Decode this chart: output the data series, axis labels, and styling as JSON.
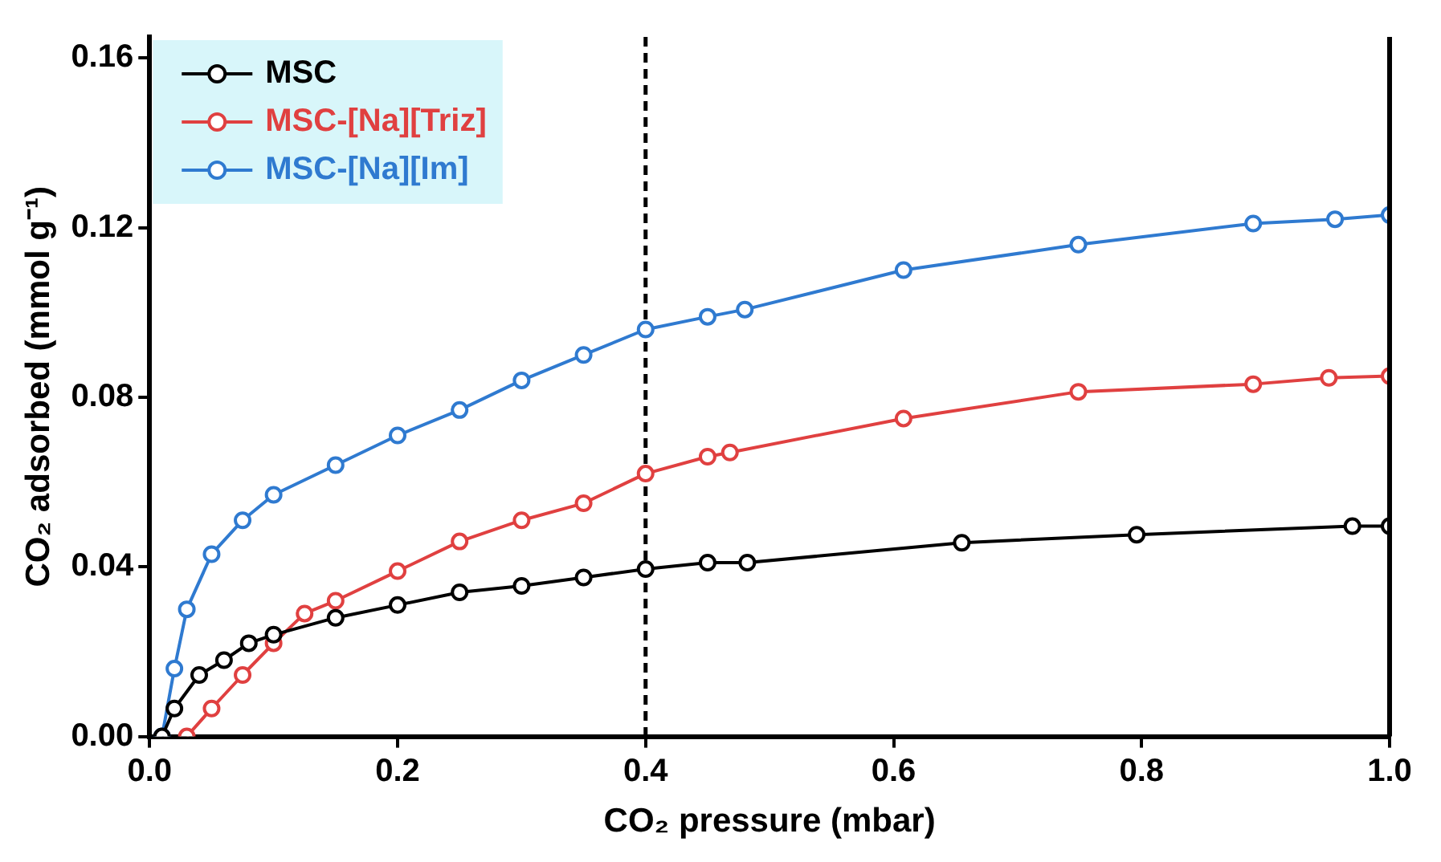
{
  "chart_data": {
    "type": "line",
    "xlabel": "CO₂ pressure (mbar)",
    "ylabel": "CO₂ adsorbed (mmol g⁻¹)",
    "xlim": [
      0,
      1
    ],
    "xticks": [
      {
        "value": 0,
        "label": "0.0"
      },
      {
        "value": 0.2,
        "label": "0.2"
      },
      {
        "value": 0.4,
        "label": "0.4"
      },
      {
        "value": 0.6,
        "label": "0.6"
      },
      {
        "value": 0.8,
        "label": "0.8"
      },
      {
        "value": 1,
        "label": "1.0"
      }
    ],
    "ylim": [
      0,
      0.165
    ],
    "yticks": [
      {
        "value": 0,
        "label": "0.00"
      },
      {
        "value": 0.04,
        "label": "0.04"
      },
      {
        "value": 0.08,
        "label": "0.08"
      },
      {
        "value": 0.12,
        "label": "0.12"
      },
      {
        "value": 0.16,
        "label": "0.16"
      }
    ],
    "grid": false,
    "legend": "top left",
    "marker": "circle",
    "line_style": "solid",
    "ref_lines": [
      {
        "axis": "x",
        "value": 0.4,
        "line_style": "dashed",
        "color": "#000000"
      }
    ],
    "series": [
      {
        "name": "MSC",
        "color": "#000000",
        "x": [
          0.01,
          0.02,
          0.04,
          0.06,
          0.08,
          0.1,
          0.15,
          0.2,
          0.25,
          0.3,
          0.35,
          0.4,
          0.45,
          0.482,
          0.655,
          0.796,
          0.97,
          1.0
        ],
        "values": [
          0,
          0.0066,
          0.0145,
          0.018,
          0.022,
          0.024,
          0.028,
          0.031,
          0.034,
          0.0355,
          0.0375,
          0.0395,
          0.041,
          0.041,
          0.0457,
          0.0476,
          0.0496,
          0.0496
        ]
      },
      {
        "name": "MSC-[Na][Triz]",
        "color": "#e04040",
        "x": [
          0.03,
          0.05,
          0.075,
          0.1,
          0.125,
          0.15,
          0.2,
          0.25,
          0.3,
          0.35,
          0.4,
          0.45,
          0.468,
          0.608,
          0.749,
          0.89,
          0.951,
          1.0
        ],
        "values": [
          0,
          0.0066,
          0.0145,
          0.022,
          0.029,
          0.032,
          0.039,
          0.046,
          0.051,
          0.055,
          0.062,
          0.066,
          0.067,
          0.075,
          0.0813,
          0.0831,
          0.0846,
          0.085
        ]
      },
      {
        "name": "MSC-[Na][Im]",
        "color": "#2f7ad0",
        "x": [
          0.01,
          0.02,
          0.03,
          0.05,
          0.075,
          0.1,
          0.15,
          0.2,
          0.25,
          0.3,
          0.35,
          0.4,
          0.45,
          0.48,
          0.608,
          0.749,
          0.89,
          0.956,
          1.0
        ],
        "values": [
          0,
          0.016,
          0.03,
          0.043,
          0.051,
          0.057,
          0.064,
          0.071,
          0.077,
          0.084,
          0.09,
          0.096,
          0.099,
          0.1007,
          0.11,
          0.116,
          0.121,
          0.122,
          0.123
        ]
      }
    ]
  }
}
